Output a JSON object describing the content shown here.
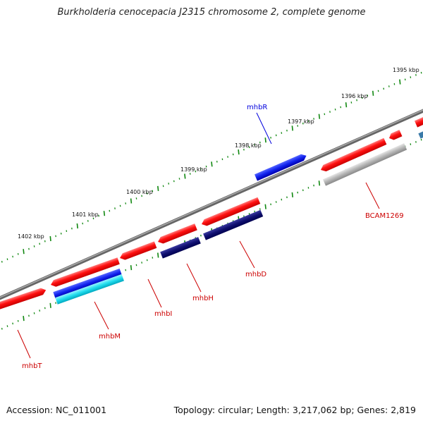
{
  "title": "Burkholderia cenocepacia J2315 chromosome 2, complete genome",
  "footer": {
    "accession": "Accession: NC_011001",
    "summary": "Topology: circular; Length: 3,217,062 bp; Genes: 2,819"
  },
  "kbp_labels": [
    "1395 kbp",
    "1396 kbp",
    "1397 kbp",
    "1398 kbp",
    "1399 kbp",
    "1400 kbp",
    "1401 kbp",
    "1402 kbp"
  ],
  "gene_labels": [
    {
      "name": "mhbR",
      "color": "#0000dd"
    },
    {
      "name": "BCAM1269",
      "color": "#cc0000"
    },
    {
      "name": "mhbD",
      "color": "#cc0000"
    },
    {
      "name": "mhbH",
      "color": "#cc0000"
    },
    {
      "name": "mhbI",
      "color": "#cc0000"
    },
    {
      "name": "mhbM",
      "color": "#cc0000"
    },
    {
      "name": "mhbT",
      "color": "#cc0000"
    }
  ],
  "colors": {
    "cds": "#ee1111",
    "gene_forward": "#1133ee",
    "gene_reverse": "#000080",
    "cyan_feature": "#33ddee",
    "gray_feature": "#b0b0b0",
    "backbone": "#777777",
    "tick": "#118811"
  }
}
